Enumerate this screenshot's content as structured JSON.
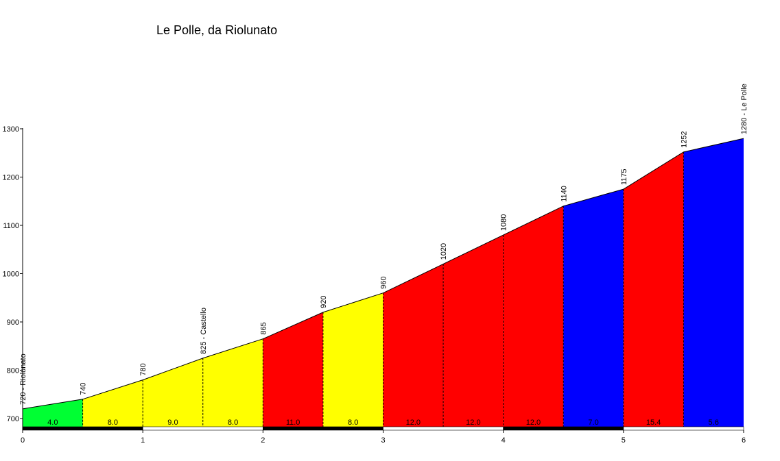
{
  "chart_data": {
    "type": "area",
    "title": "Le Polle, da Riolunato",
    "xlabel": "",
    "ylabel": "",
    "xlim": [
      0,
      6
    ],
    "ylim": [
      680,
      1300
    ],
    "x_ticks": [
      "0",
      "1",
      "2",
      "3",
      "4",
      "5",
      "6"
    ],
    "y_ticks": [
      "700",
      "800",
      "900",
      "1000",
      "1100",
      "1200",
      "1300"
    ],
    "points": [
      {
        "x": 0.0,
        "y": 720,
        "label": "720 - Riolunato"
      },
      {
        "x": 0.5,
        "y": 740,
        "label": "740"
      },
      {
        "x": 1.0,
        "y": 780,
        "label": "780"
      },
      {
        "x": 1.5,
        "y": 825,
        "label": "825 - Castello"
      },
      {
        "x": 2.0,
        "y": 865,
        "label": "865"
      },
      {
        "x": 2.5,
        "y": 920,
        "label": "920"
      },
      {
        "x": 3.0,
        "y": 960,
        "label": "960"
      },
      {
        "x": 3.5,
        "y": 1020,
        "label": "1020"
      },
      {
        "x": 4.0,
        "y": 1080,
        "label": "1080"
      },
      {
        "x": 4.5,
        "y": 1140,
        "label": "1140"
      },
      {
        "x": 5.0,
        "y": 1175,
        "label": "1175"
      },
      {
        "x": 5.5,
        "y": 1252,
        "label": "1252"
      },
      {
        "x": 6.0,
        "y": 1280,
        "label": "1280 - Le Polle"
      }
    ],
    "segments": [
      {
        "gradient": "4.0",
        "color": "#00ff33"
      },
      {
        "gradient": "8.0",
        "color": "#ffff00"
      },
      {
        "gradient": "9.0",
        "color": "#ffff00"
      },
      {
        "gradient": "8.0",
        "color": "#ffff00"
      },
      {
        "gradient": "11.0",
        "color": "#ff0000"
      },
      {
        "gradient": "8.0",
        "color": "#ffff00"
      },
      {
        "gradient": "12.0",
        "color": "#ff0000"
      },
      {
        "gradient": "12.0",
        "color": "#ff0000"
      },
      {
        "gradient": "12.0",
        "color": "#ff0000"
      },
      {
        "gradient": "7.0",
        "color": "#0000ff"
      },
      {
        "gradient": "15.4",
        "color": "#ff0000"
      },
      {
        "gradient": "5.6",
        "color": "#0000ff"
      }
    ],
    "grid": false,
    "legend": "none"
  }
}
